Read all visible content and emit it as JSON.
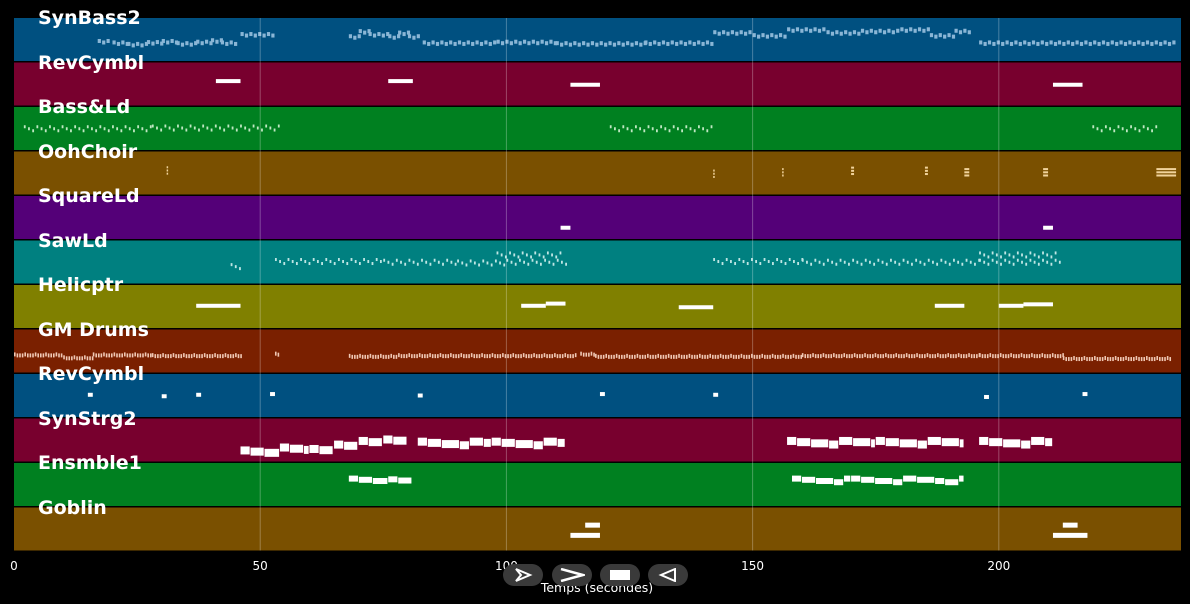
{
  "timeline": {
    "axis_title": "Temps (secondes)",
    "x_range": [
      0,
      237
    ],
    "ticks": [
      {
        "value": 0,
        "label": "0"
      },
      {
        "value": 50,
        "label": "50"
      },
      {
        "value": 100,
        "label": "100"
      },
      {
        "value": 150,
        "label": "150"
      },
      {
        "value": 200,
        "label": "200"
      }
    ]
  },
  "tracks": [
    {
      "name": "SynBass2",
      "color": "#005080",
      "notes": [
        [
          17,
          19,
          52
        ],
        [
          20,
          23,
          56
        ],
        [
          23,
          27,
          60
        ],
        [
          27,
          30,
          55
        ],
        [
          30,
          33,
          52
        ],
        [
          33,
          37,
          58
        ],
        [
          37,
          40,
          54
        ],
        [
          40,
          42,
          50
        ],
        [
          42,
          45,
          56
        ],
        [
          46,
          53,
          33
        ],
        [
          68,
          70,
          39
        ],
        [
          70,
          72,
          25
        ],
        [
          72,
          76,
          33
        ],
        [
          76,
          78,
          39
        ],
        [
          78,
          80,
          29
        ],
        [
          80,
          82,
          39
        ],
        [
          83,
          98,
          56
        ],
        [
          98,
          110,
          54
        ],
        [
          110,
          128,
          58
        ],
        [
          128,
          142,
          56
        ],
        [
          142,
          150,
          28
        ],
        [
          150,
          157,
          36
        ],
        [
          157,
          165,
          20
        ],
        [
          165,
          172,
          28
        ],
        [
          172,
          180,
          24
        ],
        [
          180,
          186,
          20
        ],
        [
          186,
          191,
          36
        ],
        [
          191,
          194,
          24
        ],
        [
          196,
          212,
          56
        ],
        [
          212,
          236,
          56
        ]
      ],
      "fill": "#8ab6d6",
      "h": 4,
      "jitter": true
    },
    {
      "name": "RevCymbl",
      "color": "#78002e",
      "notes": [
        [
          41,
          46,
          40
        ],
        [
          76,
          81,
          40
        ],
        [
          113,
          119,
          50
        ],
        [
          211,
          217,
          50
        ]
      ],
      "fill": "#ffffff",
      "h": 4
    },
    {
      "name": "Bass&Ld",
      "color": "#008020",
      "notes": [
        [
          2,
          28,
          50
        ],
        [
          28,
          54,
          48
        ],
        [
          121,
          142,
          50
        ],
        [
          219,
          232,
          50
        ]
      ],
      "fill": "#bfe7c2",
      "h": 3,
      "dotted": true
    },
    {
      "name": "OohChoir",
      "color": "#7a5000",
      "notes": [
        [
          31,
          31.3,
          35
        ],
        [
          142,
          142.3,
          44
        ],
        [
          156,
          156.3,
          40
        ],
        [
          170,
          170.6,
          36
        ],
        [
          185,
          185.6,
          36
        ],
        [
          193,
          194,
          40
        ],
        [
          209,
          210,
          40
        ],
        [
          232,
          236,
          40
        ]
      ],
      "fill": "#f1d39b",
      "h": 10,
      "stack": true
    },
    {
      "name": "SquareLd",
      "color": "#540078",
      "notes": [
        [
          111,
          113,
          76
        ],
        [
          209,
          211,
          76
        ]
      ],
      "fill": "#ffffff",
      "h": 4
    },
    {
      "name": "SawLd",
      "color": "#008080",
      "notes": [
        [
          44,
          46,
          62
        ],
        [
          53,
          75,
          48
        ],
        [
          75,
          90,
          50
        ],
        [
          90,
          100,
          52
        ],
        [
          98,
          111,
          30
        ],
        [
          100,
          112,
          50
        ],
        [
          142,
          160,
          48
        ],
        [
          160,
          196,
          50
        ],
        [
          196,
          212,
          30
        ],
        [
          196,
          213,
          50
        ]
      ],
      "fill": "#bfe6e4",
      "h": 3,
      "dotted": true
    },
    {
      "name": "Helicptr",
      "color": "#808000",
      "notes": [
        [
          37,
          46,
          46
        ],
        [
          103,
          108,
          46
        ],
        [
          108,
          112,
          40
        ],
        [
          135,
          142,
          50
        ],
        [
          187,
          193,
          46
        ],
        [
          200,
          205,
          46
        ],
        [
          205,
          211,
          42
        ]
      ],
      "fill": "#ffffff",
      "h": 4
    },
    {
      "name": "GM Drums",
      "color": "#7a2000",
      "notes": [
        [
          0,
          10,
          60
        ],
        [
          10,
          16,
          68
        ],
        [
          16,
          28,
          60
        ],
        [
          28,
          46,
          62
        ],
        [
          53,
          54,
          58
        ],
        [
          68,
          78,
          64
        ],
        [
          78,
          114,
          62
        ],
        [
          115,
          118,
          58
        ],
        [
          118,
          160,
          64
        ],
        [
          160,
          196,
          62
        ],
        [
          196,
          213,
          62
        ],
        [
          213,
          235,
          70
        ]
      ],
      "fill": "#f0c8b4",
      "h": 4,
      "dense": true
    },
    {
      "name": "RevCymbl",
      "color": "#005080",
      "notes": [
        [
          15,
          16,
          46
        ],
        [
          30,
          31,
          50
        ],
        [
          37,
          38,
          46
        ],
        [
          52,
          53,
          44
        ],
        [
          82,
          83,
          48
        ],
        [
          119,
          120,
          44
        ],
        [
          142,
          143,
          46
        ],
        [
          197,
          198,
          52
        ],
        [
          217,
          218,
          44
        ]
      ],
      "fill": "#ffffff",
      "h": 4
    },
    {
      "name": "SynStrg2",
      "color": "#78002e",
      "notes": [
        [
          46,
          54,
          76
        ],
        [
          54,
          60,
          68
        ],
        [
          60,
          65,
          72
        ],
        [
          65,
          70,
          60
        ],
        [
          70,
          75,
          50
        ],
        [
          75,
          80,
          46
        ],
        [
          82,
          97,
          52
        ],
        [
          97,
          112,
          52
        ],
        [
          157,
          175,
          50
        ],
        [
          175,
          193,
          50
        ],
        [
          196,
          211,
          50
        ]
      ],
      "fill": "#ffffff",
      "h": 8,
      "blocky": true
    },
    {
      "name": "Ensmble1",
      "color": "#008020",
      "notes": [
        [
          68,
          76,
          34
        ],
        [
          76,
          81,
          36
        ],
        [
          158,
          170,
          34
        ],
        [
          170,
          193,
          34
        ]
      ],
      "fill": "#ffffff",
      "h": 6,
      "blocky": true
    },
    {
      "name": "Goblin",
      "color": "#7a5000",
      "notes": [
        [
          116,
          119,
          36
        ],
        [
          113,
          119,
          64
        ],
        [
          213,
          216,
          36
        ],
        [
          211,
          218,
          64
        ]
      ],
      "fill": "#ffffff",
      "h": 5
    }
  ],
  "transport": {
    "buttons": [
      {
        "name": "play-button",
        "icon": "play-icon"
      },
      {
        "name": "fast-forward-button",
        "icon": "fast-forward-icon"
      },
      {
        "name": "stop-button",
        "icon": "stop-icon"
      },
      {
        "name": "rewind-button",
        "icon": "rewind-icon"
      }
    ]
  }
}
